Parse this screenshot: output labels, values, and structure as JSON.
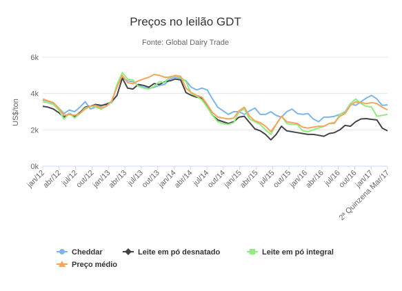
{
  "chart_data": {
    "type": "line",
    "title": "Preços no leilão GDT",
    "subtitle": "Fonte: Global Dairy Trade",
    "ylabel": "US$/ton",
    "xlabel": "",
    "ylim": [
      0,
      6000
    ],
    "yticks": [
      0,
      2000,
      4000,
      6000
    ],
    "ytick_labels": [
      "0k",
      "2k",
      "4k",
      "6k"
    ],
    "grid": true,
    "legend_position": "bottom",
    "x_tick_labels": [
      "jan/12",
      "abr/12",
      "jul/12",
      "out/12",
      "jan/13",
      "abr/13",
      "jul/13",
      "out/13",
      "jan/14",
      "abr/14",
      "jul/14",
      "out/14",
      "jan/15",
      "abr/15",
      "jul/15",
      "out/15",
      "jan/16",
      "abr/16",
      "jul/16",
      "out/16",
      "jan/17",
      "2ª Quinzena Mar/17"
    ],
    "series": [
      {
        "name": "Cheddar",
        "color": "#7cb5ec",
        "marker": "circle",
        "values": [
          3650,
          3580,
          3480,
          3200,
          2900,
          3100,
          3000,
          3250,
          3550,
          3150,
          3250,
          3300,
          3450,
          3500,
          4500,
          4850,
          4700,
          4650,
          4450,
          4350,
          4280,
          4350,
          4450,
          4500,
          4800,
          4900,
          4850,
          4700,
          4350,
          4200,
          4300,
          4200,
          3700,
          3250,
          3050,
          2850,
          3000,
          3000,
          2850,
          3050,
          3200,
          2850,
          2850,
          3000,
          2800,
          2700,
          3000,
          3150,
          2900,
          2850,
          2900,
          2600,
          2450,
          2700,
          2700,
          2750,
          2850,
          3000,
          3450,
          3350,
          3550,
          3750,
          3900,
          3700,
          3350,
          3380
        ]
      },
      {
        "name": "Leite em pó desnatado",
        "color": "#434348",
        "marker": "diamond",
        "values": [
          3300,
          3250,
          3150,
          2950,
          2700,
          2900,
          2750,
          2950,
          3250,
          3300,
          3400,
          3350,
          3400,
          3550,
          3900,
          4850,
          4300,
          4250,
          4500,
          4450,
          4350,
          4550,
          4500,
          4650,
          4700,
          4800,
          4750,
          4050,
          3900,
          3800,
          3750,
          3300,
          2800,
          2550,
          2450,
          2350,
          2450,
          2700,
          2750,
          2400,
          2050,
          1950,
          1750,
          1450,
          1750,
          2200,
          1950,
          1900,
          1850,
          1800,
          1750,
          1750,
          1700,
          1650,
          1800,
          1850,
          2000,
          2250,
          2200,
          2450,
          2600,
          2620,
          2580,
          2550,
          2100,
          1950
        ]
      },
      {
        "name": "Leite em pó integral",
        "color": "#90ed7d",
        "marker": "square",
        "values": [
          3550,
          3500,
          3400,
          3100,
          2600,
          2900,
          2650,
          2900,
          3200,
          3300,
          3250,
          3150,
          3300,
          3550,
          4500,
          5150,
          4800,
          4750,
          4400,
          4300,
          4250,
          4400,
          4650,
          4600,
          4950,
          4950,
          4900,
          4650,
          4000,
          3850,
          3650,
          3250,
          2800,
          2450,
          2350,
          2300,
          2400,
          3000,
          3150,
          2600,
          2450,
          2300,
          2000,
          1750,
          2300,
          2750,
          2350,
          2300,
          2300,
          1950,
          1900,
          2000,
          2100,
          2200,
          2350,
          2350,
          2850,
          2950,
          3450,
          3700,
          3450,
          3300,
          3250,
          2750,
          2800,
          2850
        ]
      },
      {
        "name": "Preço médio",
        "color": "#f7a35c",
        "marker": "triangle",
        "values": [
          3700,
          3600,
          3500,
          3200,
          2800,
          2850,
          2800,
          2900,
          3150,
          3300,
          3350,
          3200,
          3300,
          3600,
          4350,
          5000,
          4600,
          4550,
          4700,
          4800,
          4900,
          5050,
          5000,
          4900,
          4900,
          5000,
          4950,
          4300,
          4050,
          3900,
          3800,
          3400,
          2950,
          2700,
          2650,
          2600,
          2650,
          3050,
          3250,
          2750,
          2500,
          2400,
          2200,
          1900,
          2300,
          2750,
          2450,
          2400,
          2350,
          2150,
          2100,
          2150,
          2200,
          2200,
          2350,
          2400,
          2750,
          2900,
          3350,
          3550,
          3500,
          3450,
          3500,
          3450,
          3250,
          3100
        ]
      }
    ]
  }
}
